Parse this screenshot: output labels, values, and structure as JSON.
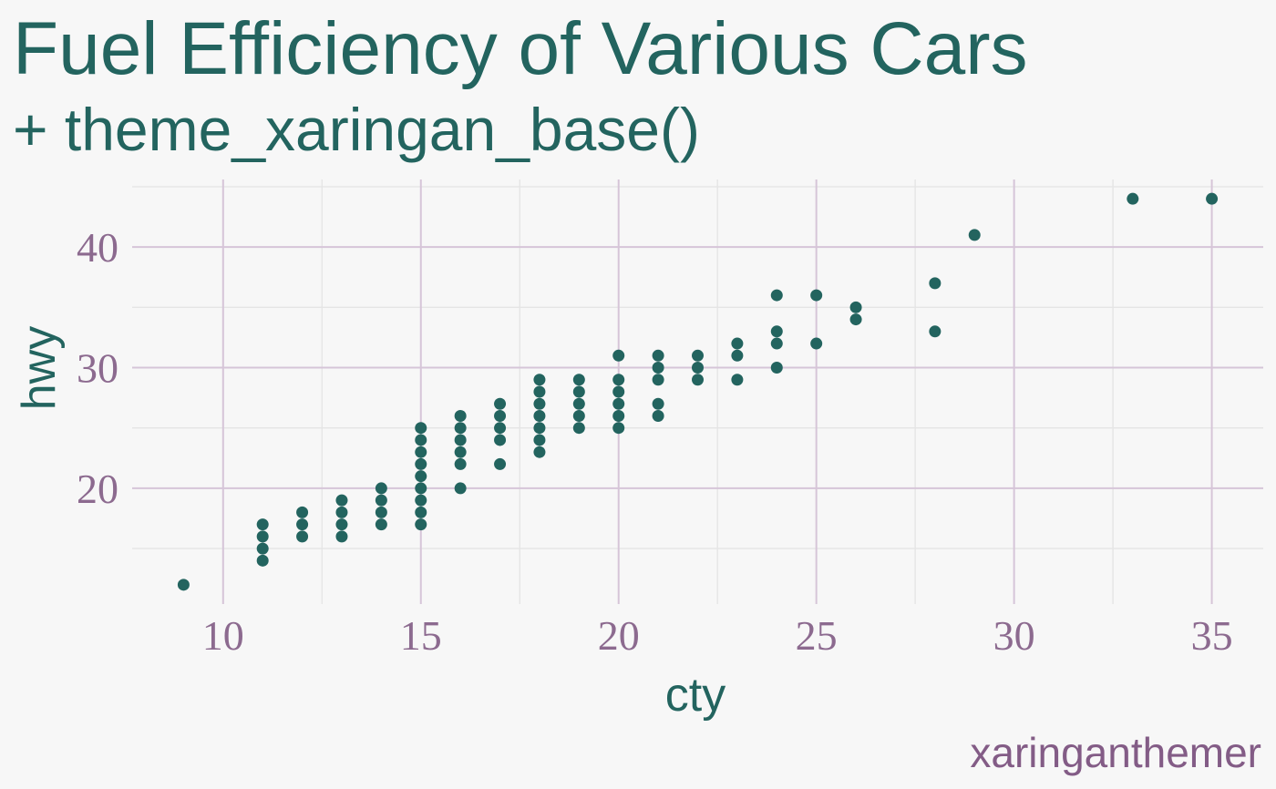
{
  "chart_data": {
    "type": "scatter",
    "title": "Fuel Efficiency of Various Cars",
    "subtitle": "+ theme_xaringan_base()",
    "caption": "xaringanthemer",
    "xlabel": "cty",
    "ylabel": "hwy",
    "xlim": [
      7.7,
      36.3
    ],
    "ylim": [
      10.4,
      45.6
    ],
    "x_ticks": [
      10,
      15,
      20,
      25,
      30,
      35
    ],
    "y_ticks": [
      20,
      30,
      40
    ],
    "grid": true,
    "legend": "none",
    "colors": {
      "background": "#f7f7f7",
      "point": "#23645f",
      "title": "#23645f",
      "tick_label": "#8c6a8f",
      "caption": "#835c86",
      "major_grid": "#d6c5d8",
      "minor_grid": "#e5e5e5"
    },
    "points": [
      [
        9,
        12
      ],
      [
        11,
        14
      ],
      [
        11,
        15
      ],
      [
        11,
        16
      ],
      [
        11,
        17
      ],
      [
        12,
        16
      ],
      [
        12,
        17
      ],
      [
        12,
        18
      ],
      [
        13,
        16
      ],
      [
        13,
        17
      ],
      [
        13,
        18
      ],
      [
        13,
        19
      ],
      [
        14,
        17
      ],
      [
        14,
        18
      ],
      [
        14,
        19
      ],
      [
        14,
        20
      ],
      [
        15,
        17
      ],
      [
        15,
        18
      ],
      [
        15,
        19
      ],
      [
        15,
        20
      ],
      [
        15,
        21
      ],
      [
        15,
        22
      ],
      [
        15,
        23
      ],
      [
        15,
        24
      ],
      [
        15,
        25
      ],
      [
        16,
        20
      ],
      [
        16,
        22
      ],
      [
        16,
        23
      ],
      [
        16,
        24
      ],
      [
        16,
        25
      ],
      [
        16,
        26
      ],
      [
        17,
        22
      ],
      [
        17,
        24
      ],
      [
        17,
        25
      ],
      [
        17,
        26
      ],
      [
        17,
        27
      ],
      [
        18,
        23
      ],
      [
        18,
        24
      ],
      [
        18,
        25
      ],
      [
        18,
        26
      ],
      [
        18,
        27
      ],
      [
        18,
        28
      ],
      [
        18,
        29
      ],
      [
        19,
        25
      ],
      [
        19,
        26
      ],
      [
        19,
        27
      ],
      [
        19,
        28
      ],
      [
        19,
        29
      ],
      [
        20,
        25
      ],
      [
        20,
        26
      ],
      [
        20,
        27
      ],
      [
        20,
        28
      ],
      [
        20,
        29
      ],
      [
        20,
        31
      ],
      [
        21,
        26
      ],
      [
        21,
        27
      ],
      [
        21,
        29
      ],
      [
        21,
        30
      ],
      [
        21,
        31
      ],
      [
        22,
        29
      ],
      [
        22,
        30
      ],
      [
        22,
        31
      ],
      [
        23,
        29
      ],
      [
        23,
        31
      ],
      [
        23,
        32
      ],
      [
        24,
        30
      ],
      [
        24,
        32
      ],
      [
        24,
        33
      ],
      [
        24,
        36
      ],
      [
        25,
        32
      ],
      [
        25,
        36
      ],
      [
        26,
        34
      ],
      [
        26,
        35
      ],
      [
        28,
        33
      ],
      [
        28,
        37
      ],
      [
        29,
        41
      ],
      [
        33,
        44
      ],
      [
        35,
        44
      ]
    ]
  }
}
